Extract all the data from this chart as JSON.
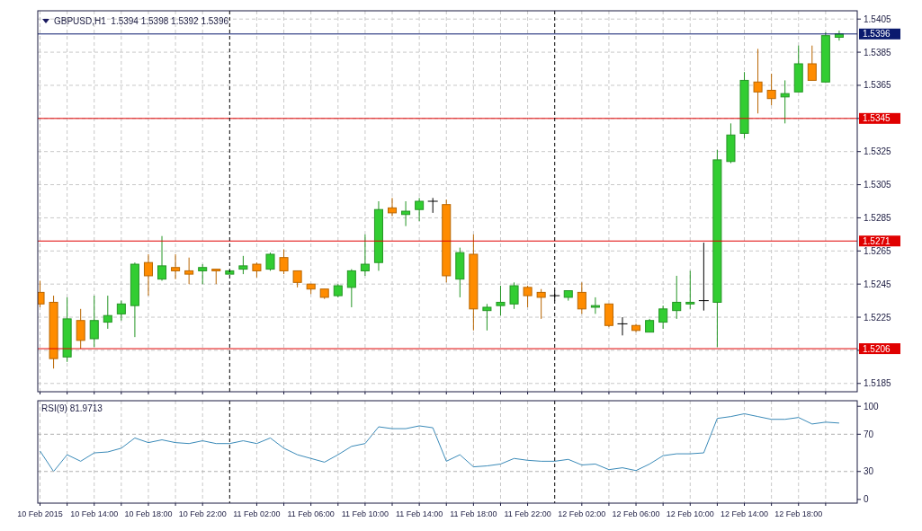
{
  "chart_data": [
    {
      "type": "candlestick",
      "title": "GBPUSD,H1  1.5394 1.5398 1.5392 1.5396",
      "x": [
        "2015-02-10T10:00",
        "2015-02-10T11:00",
        "2015-02-10T12:00",
        "2015-02-10T13:00",
        "2015-02-10T14:00",
        "2015-02-10T15:00",
        "2015-02-10T16:00",
        "2015-02-10T17:00",
        "2015-02-10T18:00",
        "2015-02-10T19:00",
        "2015-02-10T20:00",
        "2015-02-10T21:00",
        "2015-02-10T22:00",
        "2015-02-10T23:00",
        "2015-02-11T00:00",
        "2015-02-11T01:00",
        "2015-02-11T02:00",
        "2015-02-11T03:00",
        "2015-02-11T04:00",
        "2015-02-11T05:00",
        "2015-02-11T06:00",
        "2015-02-11T07:00",
        "2015-02-11T08:00",
        "2015-02-11T09:00",
        "2015-02-11T10:00",
        "2015-02-11T11:00",
        "2015-02-11T12:00",
        "2015-02-11T13:00",
        "2015-02-11T14:00",
        "2015-02-11T15:00",
        "2015-02-11T16:00",
        "2015-02-11T17:00",
        "2015-02-11T18:00",
        "2015-02-11T19:00",
        "2015-02-11T20:00",
        "2015-02-11T21:00",
        "2015-02-11T22:00",
        "2015-02-11T23:00",
        "2015-02-12T00:00",
        "2015-02-12T01:00",
        "2015-02-12T02:00",
        "2015-02-12T03:00",
        "2015-02-12T04:00",
        "2015-02-12T05:00",
        "2015-02-12T06:00",
        "2015-02-12T07:00",
        "2015-02-12T08:00",
        "2015-02-12T09:00",
        "2015-02-12T10:00",
        "2015-02-12T11:00",
        "2015-02-12T12:00",
        "2015-02-12T13:00",
        "2015-02-12T14:00",
        "2015-02-12T15:00",
        "2015-02-12T16:00",
        "2015-02-12T17:00",
        "2015-02-12T18:00",
        "2015-02-12T19:00",
        "2015-02-12T20:00",
        "2015-02-12T21:00"
      ],
      "ohlc": [
        [
          1.524,
          1.5247,
          1.5231,
          1.5233
        ],
        [
          1.5234,
          1.5238,
          1.5194,
          1.52
        ],
        [
          1.5201,
          1.5237,
          1.5198,
          1.5224
        ],
        [
          1.5223,
          1.523,
          1.5206,
          1.5211
        ],
        [
          1.5212,
          1.5238,
          1.5207,
          1.5223
        ],
        [
          1.5222,
          1.5238,
          1.5218,
          1.5226
        ],
        [
          1.5227,
          1.5235,
          1.5223,
          1.5233
        ],
        [
          1.5232,
          1.5258,
          1.5213,
          1.5257
        ],
        [
          1.5258,
          1.5263,
          1.5238,
          1.525
        ],
        [
          1.5248,
          1.5274,
          1.5247,
          1.5256
        ],
        [
          1.5255,
          1.5263,
          1.5248,
          1.5253
        ],
        [
          1.5253,
          1.5261,
          1.5245,
          1.5251
        ],
        [
          1.5253,
          1.5257,
          1.5245,
          1.5255
        ],
        [
          1.5254,
          1.5254,
          1.5245,
          1.5253
        ],
        [
          1.5251,
          1.5253,
          1.5251,
          1.5253
        ],
        [
          1.5254,
          1.5262,
          1.5251,
          1.5256
        ],
        [
          1.5257,
          1.5258,
          1.5249,
          1.5253
        ],
        [
          1.5254,
          1.5264,
          1.5253,
          1.5263
        ],
        [
          1.5261,
          1.5266,
          1.5251,
          1.5253
        ],
        [
          1.5253,
          1.5253,
          1.5243,
          1.5246
        ],
        [
          1.5245,
          1.5245,
          1.5239,
          1.5242
        ],
        [
          1.5242,
          1.5242,
          1.5236,
          1.5237
        ],
        [
          1.5238,
          1.5245,
          1.5237,
          1.5244
        ],
        [
          1.5243,
          1.5254,
          1.5231,
          1.5253
        ],
        [
          1.5253,
          1.5275,
          1.525,
          1.5257
        ],
        [
          1.5258,
          1.5295,
          1.5253,
          1.529
        ],
        [
          1.5291,
          1.5297,
          1.5286,
          1.5288
        ],
        [
          1.5287,
          1.5295,
          1.528,
          1.5289
        ],
        [
          1.529,
          1.5297,
          1.5283,
          1.5295
        ],
        [
          1.5295,
          1.5297,
          1.5288,
          1.5295
        ],
        [
          1.5293,
          1.5296,
          1.5246,
          1.525
        ],
        [
          1.5248,
          1.5267,
          1.5237,
          1.5264
        ],
        [
          1.5263,
          1.5275,
          1.5217,
          1.523
        ],
        [
          1.5229,
          1.5233,
          1.5217,
          1.5231
        ],
        [
          1.5232,
          1.5244,
          1.5226,
          1.5234
        ],
        [
          1.5233,
          1.5246,
          1.523,
          1.5244
        ],
        [
          1.5243,
          1.5244,
          1.5231,
          1.5238
        ],
        [
          1.524,
          1.5242,
          1.5224,
          1.5237
        ],
        [
          1.5238,
          1.5241,
          1.5235,
          1.5238
        ],
        [
          1.5237,
          1.5241,
          1.5235,
          1.5241
        ],
        [
          1.524,
          1.5246,
          1.5227,
          1.523
        ],
        [
          1.5231,
          1.5237,
          1.5227,
          1.5232
        ],
        [
          1.5233,
          1.5233,
          1.5219,
          1.522
        ],
        [
          1.5221,
          1.5225,
          1.5214,
          1.5221
        ],
        [
          1.522,
          1.5221,
          1.5216,
          1.5217
        ],
        [
          1.5216,
          1.5224,
          1.5216,
          1.5223
        ],
        [
          1.5222,
          1.5232,
          1.5218,
          1.523
        ],
        [
          1.5229,
          1.525,
          1.5224,
          1.5234
        ],
        [
          1.5233,
          1.5253,
          1.523,
          1.5234
        ],
        [
          1.5235,
          1.527,
          1.5229,
          1.5235
        ],
        [
          1.5234,
          1.5326,
          1.5207,
          1.532
        ],
        [
          1.5319,
          1.5342,
          1.5318,
          1.5335
        ],
        [
          1.5336,
          1.5373,
          1.5333,
          1.5368
        ],
        [
          1.5367,
          1.5387,
          1.5348,
          1.5361
        ],
        [
          1.5362,
          1.5372,
          1.5353,
          1.5357
        ],
        [
          1.5358,
          1.5368,
          1.5342,
          1.536
        ],
        [
          1.5361,
          1.5389,
          1.5361,
          1.5378
        ],
        [
          1.5378,
          1.5389,
          1.5368,
          1.5368
        ],
        [
          1.5367,
          1.5397,
          1.5367,
          1.5395
        ],
        [
          1.5394,
          1.5398,
          1.5392,
          1.5396
        ]
      ],
      "colors": [
        "#ff8c00",
        "#ff8c00",
        "#32cd32",
        "#ff8c00",
        "#32cd32",
        "#32cd32",
        "#32cd32",
        "#32cd32",
        "#ff8c00",
        "#32cd32",
        "#ff8c00",
        "#ff8c00",
        "#32cd32",
        "#ff8c00",
        "#32cd32",
        "#32cd32",
        "#ff8c00",
        "#32cd32",
        "#ff8c00",
        "#ff8c00",
        "#ff8c00",
        "#ff8c00",
        "#32cd32",
        "#32cd32",
        "#32cd32",
        "#32cd32",
        "#ff8c00",
        "#32cd32",
        "#32cd32",
        "#000000",
        "#ff8c00",
        "#32cd32",
        "#ff8c00",
        "#32cd32",
        "#32cd32",
        "#32cd32",
        "#ff8c00",
        "#ff8c00",
        "#000000",
        "#32cd32",
        "#ff8c00",
        "#32cd32",
        "#ff8c00",
        "#000000",
        "#ff8c00",
        "#32cd32",
        "#32cd32",
        "#32cd32",
        "#32cd32",
        "#000000",
        "#32cd32",
        "#32cd32",
        "#32cd32",
        "#ff8c00",
        "#ff8c00",
        "#32cd32",
        "#32cd32",
        "#ff8c00",
        "#32cd32",
        "#32cd32"
      ],
      "xlim": [
        "2015-02-10T09:50",
        "2015-02-12T22:20"
      ],
      "xticks": [
        {
          "value": "2015-02-10T10:00",
          "label": null
        },
        {
          "value": "2015-02-10T12:00",
          "label": null
        },
        {
          "value": "2015-02-10T14:00",
          "label": null
        },
        {
          "value": "2015-02-10T16:00",
          "label": null
        },
        {
          "value": "2015-02-10T18:00",
          "label": null
        },
        {
          "value": "2015-02-10T20:00",
          "label": null
        },
        {
          "value": "2015-02-10T22:00",
          "label": null
        },
        {
          "value": "2015-02-11T02:00",
          "label": null
        },
        {
          "value": "2015-02-11T04:00",
          "label": null
        },
        {
          "value": "2015-02-11T06:00",
          "label": null
        },
        {
          "value": "2015-02-11T08:00",
          "label": null
        },
        {
          "value": "2015-02-11T10:00",
          "label": null
        },
        {
          "value": "2015-02-11T12:00",
          "label": null
        },
        {
          "value": "2015-02-11T14:00",
          "label": null
        },
        {
          "value": "2015-02-11T16:00",
          "label": null
        },
        {
          "value": "2015-02-11T18:00",
          "label": null
        },
        {
          "value": "2015-02-11T20:00",
          "label": null
        },
        {
          "value": "2015-02-11T22:00",
          "label": null
        },
        {
          "value": "2015-02-12T02:00",
          "label": null
        },
        {
          "value": "2015-02-12T04:00",
          "label": null
        },
        {
          "value": "2015-02-12T06:00",
          "label": null
        },
        {
          "value": "2015-02-12T08:00",
          "label": null
        },
        {
          "value": "2015-02-12T10:00",
          "label": null
        },
        {
          "value": "2015-02-12T12:00",
          "label": null
        },
        {
          "value": "2015-02-12T14:00",
          "label": null
        },
        {
          "value": "2015-02-12T16:00",
          "label": null
        },
        {
          "value": "2015-02-12T18:00",
          "label": null
        },
        {
          "value": "2015-02-12T20:00",
          "label": null
        }
      ],
      "ylim": [
        1.518,
        1.541
      ],
      "yticks": [
        1.5185,
        {
          "value": 1.5205,
          "label": null
        },
        1.5225,
        1.5245,
        1.5265,
        1.5285,
        1.5305,
        1.5325,
        {
          "value": 1.5345,
          "label": null
        },
        1.5365,
        1.5385,
        1.5405
      ],
      "grid": true,
      "tick_labels": "y",
      "ref_lines": [
        {
          "axis": "y",
          "value": 1.5345,
          "label": "1.5345",
          "color": "#e00000"
        },
        {
          "axis": "y",
          "value": 1.5271,
          "label": "1.5271",
          "color": "#e00000"
        },
        {
          "axis": "y",
          "value": 1.5206,
          "label": "1.5206",
          "color": "#e00000"
        },
        {
          "axis": "y",
          "value": 1.5396,
          "label": "1.5396",
          "color": "#0a1a6e"
        },
        {
          "axis": "x",
          "value": "2015-02-11T00:00",
          "color": "#000000",
          "line_style": "dashed"
        },
        {
          "axis": "x",
          "value": "2015-02-12T00:00",
          "color": "#000000",
          "line_style": "dashed"
        }
      ]
    },
    {
      "type": "line",
      "title": "RSI(9) 81.9713",
      "x": [
        "2015-02-10T10:00",
        "2015-02-10T11:00",
        "2015-02-10T12:00",
        "2015-02-10T13:00",
        "2015-02-10T14:00",
        "2015-02-10T15:00",
        "2015-02-10T16:00",
        "2015-02-10T17:00",
        "2015-02-10T18:00",
        "2015-02-10T19:00",
        "2015-02-10T20:00",
        "2015-02-10T21:00",
        "2015-02-10T22:00",
        "2015-02-10T23:00",
        "2015-02-11T00:00",
        "2015-02-11T01:00",
        "2015-02-11T02:00",
        "2015-02-11T03:00",
        "2015-02-11T04:00",
        "2015-02-11T05:00",
        "2015-02-11T06:00",
        "2015-02-11T07:00",
        "2015-02-11T08:00",
        "2015-02-11T09:00",
        "2015-02-11T10:00",
        "2015-02-11T11:00",
        "2015-02-11T12:00",
        "2015-02-11T13:00",
        "2015-02-11T14:00",
        "2015-02-11T15:00",
        "2015-02-11T16:00",
        "2015-02-11T17:00",
        "2015-02-11T18:00",
        "2015-02-11T19:00",
        "2015-02-11T20:00",
        "2015-02-11T21:00",
        "2015-02-11T22:00",
        "2015-02-11T23:00",
        "2015-02-12T00:00",
        "2015-02-12T01:00",
        "2015-02-12T02:00",
        "2015-02-12T03:00",
        "2015-02-12T04:00",
        "2015-02-12T05:00",
        "2015-02-12T06:00",
        "2015-02-12T07:00",
        "2015-02-12T08:00",
        "2015-02-12T09:00",
        "2015-02-12T10:00",
        "2015-02-12T11:00",
        "2015-02-12T12:00",
        "2015-02-12T13:00",
        "2015-02-12T14:00",
        "2015-02-12T15:00",
        "2015-02-12T16:00",
        "2015-02-12T17:00",
        "2015-02-12T18:00",
        "2015-02-12T19:00",
        "2015-02-12T20:00",
        "2015-02-12T21:00"
      ],
      "series": [
        {
          "color": "#3a8ab8",
          "values": [
            52,
            30,
            48,
            41,
            50,
            51,
            55,
            66,
            61,
            64,
            61,
            60,
            63,
            60,
            60,
            63,
            60,
            66,
            55,
            48,
            44,
            40,
            48,
            57,
            60,
            78,
            76,
            76,
            79,
            77,
            41,
            48,
            35,
            36,
            38,
            44,
            42,
            41,
            41,
            43,
            37,
            38,
            32,
            34,
            31,
            38,
            47,
            49,
            49,
            50,
            87,
            89,
            92,
            89,
            86,
            86,
            88,
            81,
            83,
            82
          ]
        }
      ],
      "xlim": [
        "2015-02-10T09:50",
        "2015-02-12T22:20"
      ],
      "xticks": [
        {
          "value": "2015-02-10T10:00",
          "label": "10 Feb 2015"
        },
        {
          "value": "2015-02-10T12:00",
          "label": null
        },
        {
          "value": "2015-02-10T14:00",
          "label": "10 Feb 14:00"
        },
        {
          "value": "2015-02-10T16:00",
          "label": null
        },
        {
          "value": "2015-02-10T18:00",
          "label": "10 Feb 18:00"
        },
        {
          "value": "2015-02-10T20:00",
          "label": null
        },
        {
          "value": "2015-02-10T22:00",
          "label": "10 Feb 22:00"
        },
        {
          "value": "2015-02-11T02:00",
          "label": "11 Feb 02:00"
        },
        {
          "value": "2015-02-11T04:00",
          "label": null
        },
        {
          "value": "2015-02-11T06:00",
          "label": "11 Feb 06:00"
        },
        {
          "value": "2015-02-11T08:00",
          "label": null
        },
        {
          "value": "2015-02-11T10:00",
          "label": "11 Feb 10:00"
        },
        {
          "value": "2015-02-11T12:00",
          "label": null
        },
        {
          "value": "2015-02-11T14:00",
          "label": "11 Feb 14:00"
        },
        {
          "value": "2015-02-11T16:00",
          "label": null
        },
        {
          "value": "2015-02-11T18:00",
          "label": "11 Feb 18:00"
        },
        {
          "value": "2015-02-11T20:00",
          "label": null
        },
        {
          "value": "2015-02-11T22:00",
          "label": "11 Feb 22:00"
        },
        {
          "value": "2015-02-12T02:00",
          "label": "12 Feb 02:00"
        },
        {
          "value": "2015-02-12T04:00",
          "label": null
        },
        {
          "value": "2015-02-12T06:00",
          "label": "12 Feb 06:00"
        },
        {
          "value": "2015-02-12T08:00",
          "label": null
        },
        {
          "value": "2015-02-12T10:00",
          "label": "12 Feb 10:00"
        },
        {
          "value": "2015-02-12T12:00",
          "label": null
        },
        {
          "value": "2015-02-12T14:00",
          "label": "12 Feb 14:00"
        },
        {
          "value": "2015-02-12T16:00",
          "label": null
        },
        {
          "value": "2015-02-12T18:00",
          "label": "12 Feb 18:00"
        },
        {
          "value": "2015-02-12T20:00",
          "label": null
        }
      ],
      "ylim": [
        -4,
        106
      ],
      "yticks": [
        0,
        30,
        70,
        100
      ],
      "grid": "x",
      "ref_lines": [
        {
          "axis": "y",
          "value": 70,
          "color": "#b0b0b0",
          "line_style": "dashed"
        },
        {
          "axis": "y",
          "value": 30,
          "color": "#b0b0b0",
          "line_style": "dashed"
        },
        {
          "axis": "x",
          "value": "2015-02-11T00:00",
          "color": "#000000",
          "line_style": "dashed"
        },
        {
          "axis": "x",
          "value": "2015-02-12T00:00",
          "color": "#000000",
          "line_style": "dashed"
        }
      ]
    }
  ]
}
